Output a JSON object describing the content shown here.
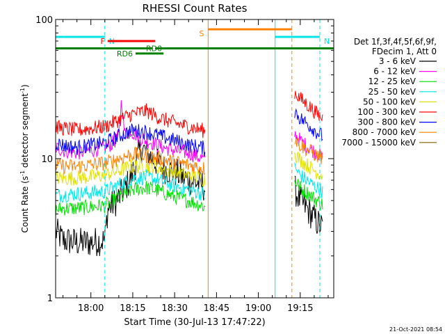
{
  "chart_data": {
    "type": "line",
    "title": "RHESSI Count Rates",
    "xlabel": "Start Time (30-Jul-13 17:47:22)",
    "ylabel_main": "Count Rate (s",
    "ylabel_sup": "-1",
    "ylabel_tail": " detector segment",
    "ylabel_end": ")",
    "y_scale": "log",
    "ylim": [
      1,
      100
    ],
    "xlim": [
      "17:47:22",
      "19:27:00"
    ],
    "x_ticks": [
      "18:00",
      "18:15",
      "18:30",
      "18:45",
      "19:00",
      "19:15"
    ],
    "y_ticks": [
      "1",
      "10",
      "100"
    ],
    "timestamp": "21-Oct-2021 08:54",
    "legend": {
      "header_line1": "Det 1f,3f,4f,5f,6f,9f,",
      "header_line2": "FDecim 1, Att 0",
      "entries": [
        {
          "label": "3 - 6 keV",
          "color": "#000000"
        },
        {
          "label": "6 - 12 keV",
          "color": "#ff00ff"
        },
        {
          "label": "12 - 25 keV",
          "color": "#00e000"
        },
        {
          "label": "25 - 50 keV",
          "color": "#00e6e6"
        },
        {
          "label": "50 - 100 keV",
          "color": "#e0e000"
        },
        {
          "label": "100 - 300 keV",
          "color": "#ff0000"
        },
        {
          "label": "300 - 800 keV",
          "color": "#0000ff"
        },
        {
          "label": "800 - 7000 keV",
          "color": "#ff8000"
        },
        {
          "label": "7000 - 15000 keV",
          "color": "#806000"
        }
      ]
    },
    "flags": [
      {
        "label": "N",
        "color": "#00e6e6",
        "start": "17:47:22",
        "end": "18:05",
        "y": 75
      },
      {
        "label": "N",
        "color": "#00e6e6",
        "start": "19:06",
        "end": "19:22",
        "y": 75
      },
      {
        "label": "F",
        "color": "#ff0000",
        "start": "18:06",
        "end": "18:23",
        "y": 70
      },
      {
        "label": "RD0",
        "color": "#008000",
        "start": "18:23",
        "end": "18:26",
        "y": 62
      },
      {
        "label": "RD6",
        "color": "#008000",
        "start": "18:16",
        "end": "18:26",
        "y": 57
      },
      {
        "label": "",
        "color": "#008000",
        "start": "17:47:22",
        "end": "18:22",
        "y": 62
      },
      {
        "label": "",
        "color": "#008000",
        "start": "18:26",
        "end": "19:28",
        "y": 62
      },
      {
        "label": "S",
        "color": "#ff8000",
        "start": "18:42",
        "end": "19:12",
        "y": 85
      }
    ],
    "vlines": [
      {
        "time": "17:47:22",
        "color": "#00e6e6",
        "style": "solid"
      },
      {
        "time": "18:05",
        "color": "#00e6e6",
        "style": "dashed"
      },
      {
        "time": "18:42",
        "color": "#ff8000",
        "style": "solid"
      },
      {
        "time": "19:06",
        "color": "#00e6e6",
        "style": "solid"
      },
      {
        "time": "19:12",
        "color": "#ff8000",
        "style": "dashed"
      },
      {
        "time": "19:22",
        "color": "#00e6e6",
        "style": "dashed"
      }
    ],
    "series": [
      {
        "name": "3 - 6 keV",
        "color": "#000000",
        "segments": [
          {
            "x": [
              "17:47:22",
              "17:50",
              "17:55",
              "18:00",
              "18:05",
              "18:06",
              "18:10",
              "18:14",
              "18:18",
              "18:22",
              "18:26",
              "18:30",
              "18:35",
              "18:40",
              "18:41"
            ],
            "y": [
              3.0,
              2.6,
              2.5,
              2.5,
              2.6,
              4.3,
              5.2,
              7.0,
              12.0,
              10.0,
              8.5,
              8.0,
              7.0,
              6.5,
              6.0
            ]
          },
          {
            "x": [
              "19:13",
              "19:15",
              "19:18",
              "19:21",
              "19:23"
            ],
            "y": [
              6.0,
              5.0,
              4.2,
              3.5,
              3.2
            ]
          }
        ]
      },
      {
        "name": "6 - 12 keV",
        "color": "#ff00ff",
        "segments": [
          {
            "x": [
              "17:47:22",
              "17:50",
              "17:55",
              "18:00",
              "18:05",
              "18:08",
              "18:10",
              "18:11",
              "18:12",
              "18:14",
              "18:18",
              "18:22",
              "18:26",
              "18:30",
              "18:35",
              "18:40",
              "18:41"
            ],
            "y": [
              12.0,
              11.5,
              11.0,
              11.5,
              12.0,
              13.0,
              14.5,
              27.0,
              15.0,
              16.0,
              14.0,
              13.0,
              12.0,
              11.5,
              11.0,
              10.0,
              9.5
            ]
          },
          {
            "x": [
              "19:13",
              "19:15",
              "19:18",
              "19:21",
              "19:23"
            ],
            "y": [
              15.0,
              13.5,
              12.0,
              11.0,
              10.0
            ]
          }
        ]
      },
      {
        "name": "12 - 25 keV",
        "color": "#00e000",
        "segments": [
          {
            "x": [
              "17:47:22",
              "17:50",
              "17:55",
              "18:00",
              "18:05",
              "18:10",
              "18:15",
              "18:20",
              "18:25",
              "18:30",
              "18:35",
              "18:40",
              "18:41"
            ],
            "y": [
              4.3,
              4.4,
              4.4,
              4.5,
              4.6,
              5.2,
              6.0,
              6.2,
              5.8,
              5.3,
              5.0,
              4.6,
              4.4
            ]
          },
          {
            "x": [
              "19:13",
              "19:15",
              "19:18",
              "19:21",
              "19:23"
            ],
            "y": [
              7.0,
              6.2,
              5.6,
              5.0,
              4.7
            ]
          }
        ]
      },
      {
        "name": "25 - 50 keV",
        "color": "#00e6e6",
        "segments": [
          {
            "x": [
              "17:47:22",
              "17:50",
              "17:55",
              "18:00",
              "18:05",
              "18:10",
              "18:15",
              "18:20",
              "18:25",
              "18:30",
              "18:35",
              "18:40",
              "18:41"
            ],
            "y": [
              5.4,
              5.5,
              5.6,
              5.7,
              5.8,
              6.5,
              7.2,
              7.4,
              6.9,
              6.4,
              6.0,
              5.6,
              5.4
            ]
          },
          {
            "x": [
              "19:13",
              "19:15",
              "19:18",
              "19:21",
              "19:23"
            ],
            "y": [
              8.6,
              7.6,
              6.8,
              6.2,
              5.8
            ]
          }
        ]
      },
      {
        "name": "50 - 100 keV",
        "color": "#e0e000",
        "segments": [
          {
            "x": [
              "17:47:22",
              "17:50",
              "17:55",
              "18:00",
              "18:05",
              "18:10",
              "18:15",
              "18:20",
              "18:25",
              "18:30",
              "18:35",
              "18:40",
              "18:41"
            ],
            "y": [
              7.3,
              7.2,
              7.3,
              7.4,
              7.6,
              8.2,
              8.8,
              9.0,
              8.5,
              8.0,
              7.6,
              7.2,
              7.0
            ]
          },
          {
            "x": [
              "19:13",
              "19:15",
              "19:18",
              "19:21",
              "19:23"
            ],
            "y": [
              11.0,
              9.8,
              8.8,
              8.0,
              7.6
            ]
          }
        ]
      },
      {
        "name": "100 - 300 keV",
        "color": "#ff0000",
        "segments": [
          {
            "x": [
              "17:47:22",
              "17:50",
              "17:55",
              "18:00",
              "18:05",
              "18:10",
              "18:15",
              "18:20",
              "18:25",
              "18:30",
              "18:35",
              "18:40",
              "18:41"
            ],
            "y": [
              17.0,
              16.5,
              16.0,
              16.5,
              17.0,
              19.0,
              21.0,
              22.0,
              19.5,
              18.0,
              17.0,
              16.0,
              15.5
            ]
          },
          {
            "x": [
              "19:13",
              "19:15",
              "19:18",
              "19:21",
              "19:23"
            ],
            "y": [
              30.0,
              27.0,
              24.0,
              21.0,
              19.5
            ]
          }
        ]
      },
      {
        "name": "300 - 800 keV",
        "color": "#0000ff",
        "segments": [
          {
            "x": [
              "17:47:22",
              "17:50",
              "17:55",
              "18:00",
              "18:05",
              "18:10",
              "18:15",
              "18:20",
              "18:25",
              "18:30",
              "18:35",
              "18:40",
              "18:41"
            ],
            "y": [
              13.0,
              12.5,
              12.0,
              12.5,
              13.0,
              14.5,
              16.0,
              15.5,
              14.5,
              13.5,
              12.5,
              12.0,
              11.5
            ]
          },
          {
            "x": [
              "19:13",
              "19:15",
              "19:18",
              "19:21",
              "19:23"
            ],
            "y": [
              22.0,
              19.5,
              17.5,
              15.5,
              14.5
            ]
          }
        ]
      },
      {
        "name": "800 - 7000 keV",
        "color": "#ff8000",
        "segments": [
          {
            "x": [
              "17:47:22",
              "17:50",
              "17:55",
              "18:00",
              "18:05",
              "18:10",
              "18:15",
              "18:20",
              "18:25",
              "18:30",
              "18:35",
              "18:40",
              "18:41"
            ],
            "y": [
              9.0,
              8.8,
              8.8,
              9.0,
              9.3,
              10.0,
              10.8,
              10.5,
              10.0,
              9.5,
              9.0,
              8.6,
              8.4
            ]
          },
          {
            "x": [
              "19:13",
              "19:15",
              "19:18",
              "19:21",
              "19:23"
            ],
            "y": [
              14.0,
              12.5,
              11.5,
              10.5,
              10.0
            ]
          }
        ]
      }
    ]
  }
}
